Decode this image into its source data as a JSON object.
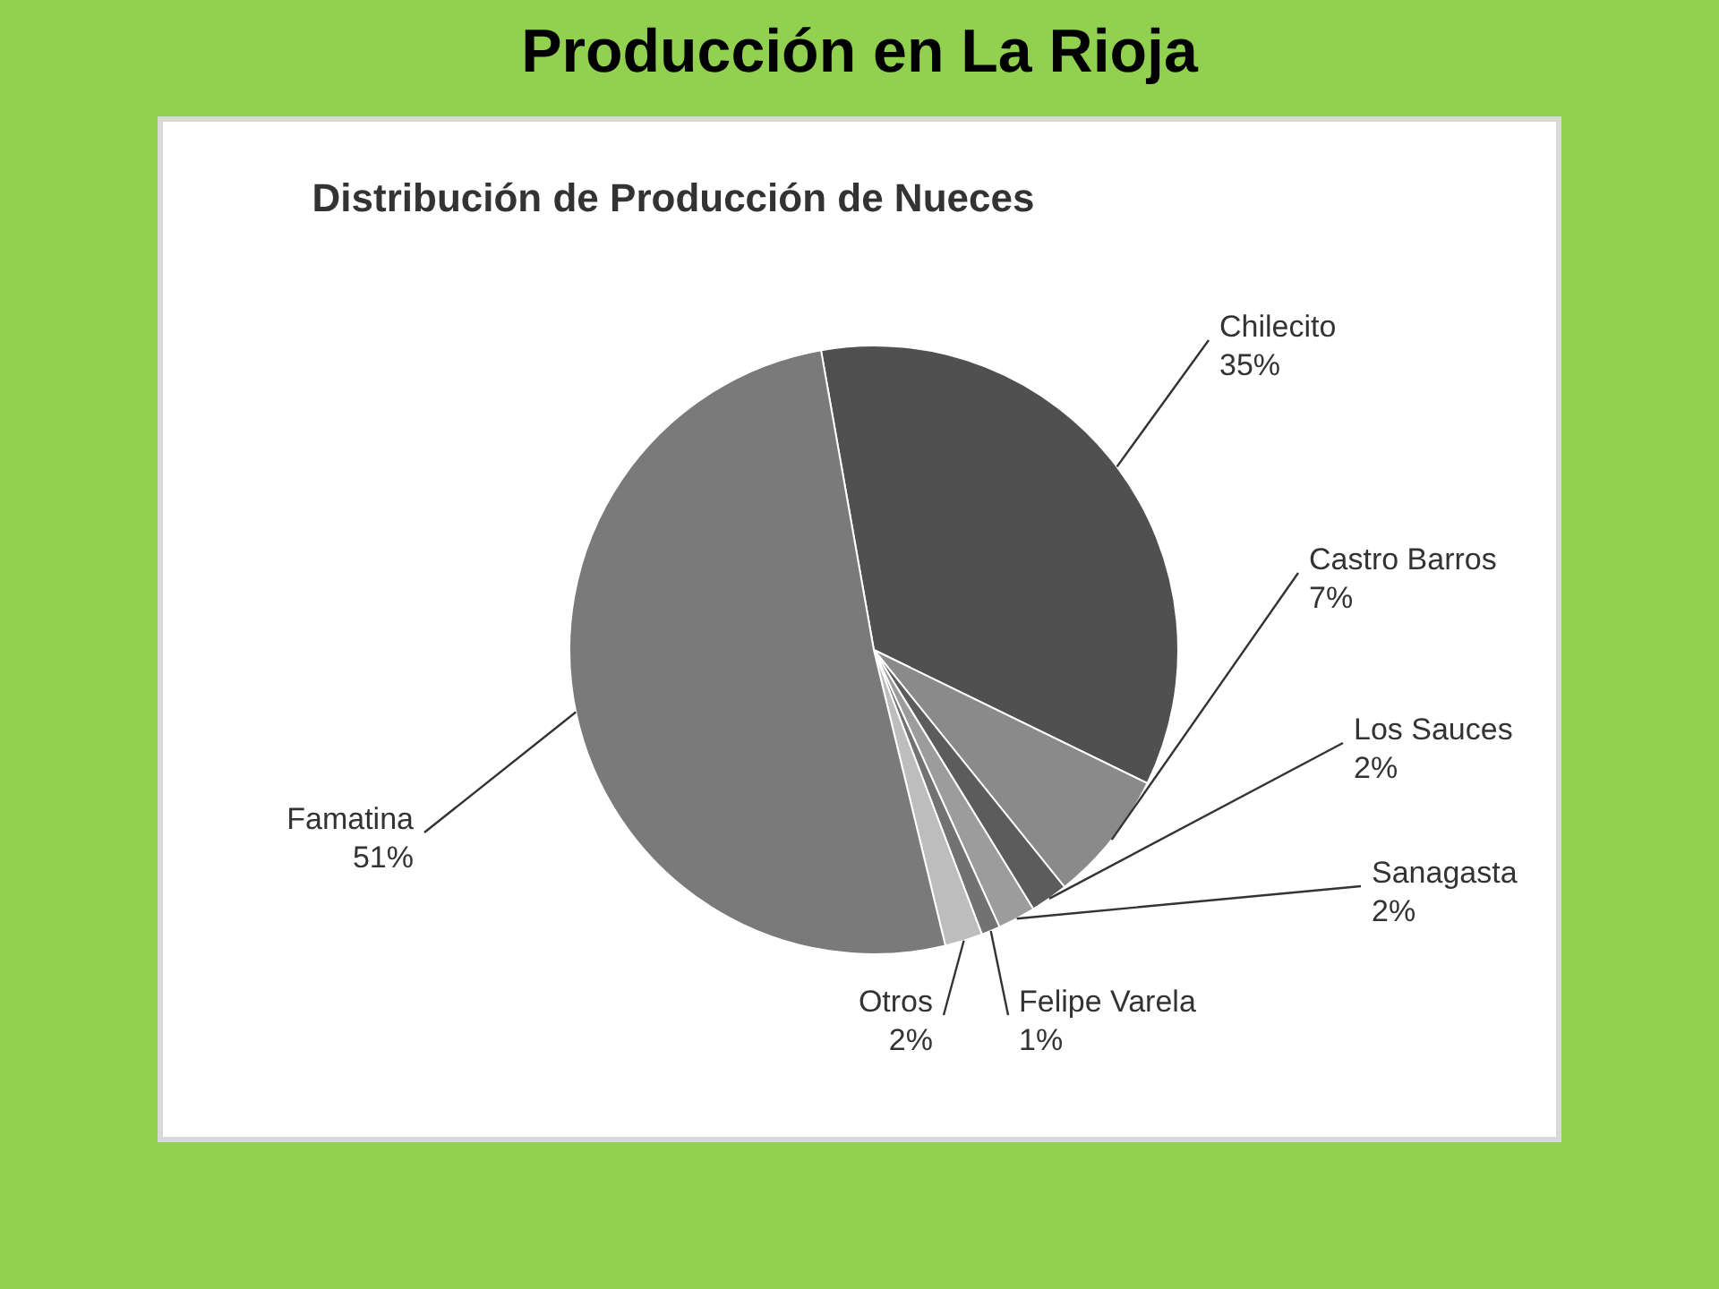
{
  "chart_data": {
    "type": "pie",
    "title": "Producción en La Rioja",
    "subtitle": "Distribución de Producción de Nueces",
    "categories": [
      "Chilecito",
      "Castro Barros",
      "Los Sauces",
      "Sanagasta",
      "Felipe Varela",
      "Otros",
      "Famatina"
    ],
    "values": [
      35,
      7,
      2,
      2,
      1,
      2,
      51
    ],
    "value_labels": [
      "35%",
      "7%",
      "2%",
      "2%",
      "1%",
      "2%",
      "51%"
    ],
    "colors": [
      "#505050",
      "#8a8a8a",
      "#5c5c5c",
      "#9c9c9c",
      "#727272",
      "#bdbdbd",
      "#7a7a7a"
    ],
    "legend": false
  }
}
